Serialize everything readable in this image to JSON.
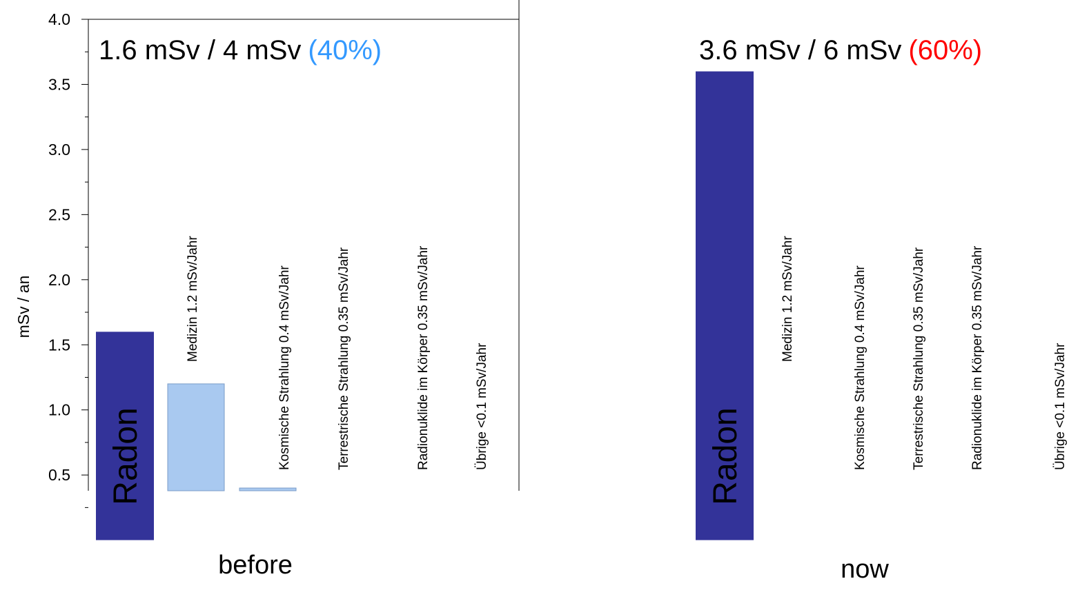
{
  "chart_data": [
    {
      "type": "bar",
      "title": "1.6 mSv / 4 mSv",
      "title_highlight": "(40%)",
      "title_highlight_color": "#3399ff",
      "caption": "before",
      "caption_color": "#3a6ee8",
      "y_label": "mSv / an",
      "categories": [
        "Radon",
        "Medizin 1.2 mSv/Jahr",
        "Kosmische Strahlung 0.4 mSv/Jahr",
        "Terrestrische Strahlung 0.35 mSv/Jahr",
        "Radionuklide im Körper 0.35 mSv/Jahr",
        "Übrige <0.1 mSv/Jahr"
      ],
      "values": [
        1.6,
        1.2,
        0.4,
        0.35,
        0.35,
        null
      ],
      "colors": [
        "#333399",
        "#a9c9f0",
        "#a9c9f0",
        "#a9c9f0",
        "#a9c9f0",
        "#a9c9f0"
      ],
      "ylim": [
        0,
        4
      ],
      "yticks": [
        0.5,
        {
          "value": 1,
          "label": "1.0"
        },
        1.5,
        {
          "value": 2,
          "label": "2.0"
        },
        2.5,
        {
          "value": 3,
          "label": "3.0"
        },
        3.5,
        {
          "value": 4,
          "label": "4.0"
        }
      ]
    },
    {
      "type": "bar",
      "title": "3.6 mSv / 6 mSv",
      "title_highlight": "(60%)",
      "title_highlight_color": "#ff0000",
      "caption": "now",
      "caption_color": "#ff0000",
      "categories": [
        "Radon",
        "Medizin 1.2 mSv/Jahr",
        "Kosmische Strahlung 0.4 mSv/Jahr",
        "Terrestrische Strahlung 0.35 mSv/Jahr",
        "Radionuklide im Körper 0.35 mSv/Jahr",
        "Übrige <0.1 mSv/Jahr"
      ],
      "values": [
        3.6,
        null,
        null,
        null,
        null,
        null
      ],
      "colors": [
        "#333399",
        "#a9c9f0",
        "#a9c9f0",
        "#a9c9f0",
        "#a9c9f0",
        "#a9c9f0"
      ],
      "ylim": [
        0,
        4
      ]
    }
  ]
}
